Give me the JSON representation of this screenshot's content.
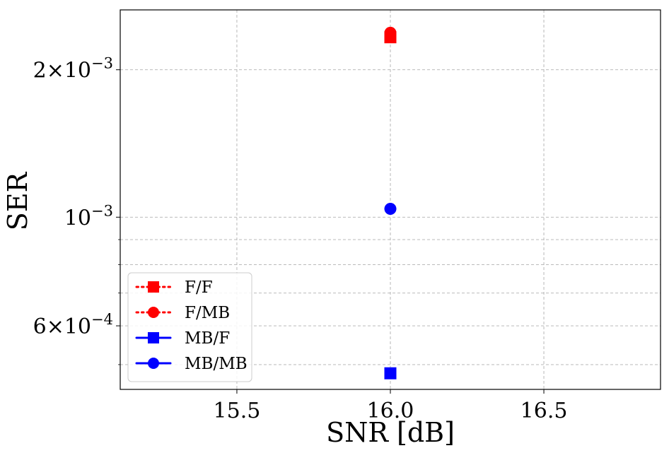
{
  "chart_data": {
    "type": "scatter",
    "title": "",
    "xlabel": "SNR [dB]",
    "ylabel": "SER",
    "x_scale": "linear",
    "y_scale": "log",
    "xlim": [
      15.12,
      16.88
    ],
    "ylim": [
      0.000445,
      0.00265
    ],
    "x_ticks": [
      15.5,
      16.0,
      16.5
    ],
    "x_tick_labels": [
      "15.5",
      "16.0",
      "16.5"
    ],
    "y_major_ticks": [
      {
        "value": 0.002,
        "mantissa": "2",
        "exponent": "−3"
      },
      {
        "value": 0.001,
        "mantissa": "",
        "exponent": "−3"
      },
      {
        "value": 0.0006,
        "mantissa": "6",
        "exponent": "−4"
      }
    ],
    "y_minor_gridlines": [
      0.0005,
      0.0007,
      0.0008,
      0.0009
    ],
    "grid": true,
    "legend_position": "lower-left",
    "series": [
      {
        "name": "F/F",
        "color": "#ff0000",
        "marker": "square",
        "linestyle": "dotted",
        "x": [
          16.0
        ],
        "y": [
          0.00233
        ]
      },
      {
        "name": "F/MB",
        "color": "#ff0000",
        "marker": "circle",
        "linestyle": "dotted",
        "x": [
          16.0
        ],
        "y": [
          0.00238
        ]
      },
      {
        "name": "MB/F",
        "color": "#0000ff",
        "marker": "square",
        "linestyle": "solid",
        "x": [
          16.0
        ],
        "y": [
          0.00048
        ]
      },
      {
        "name": "MB/MB",
        "color": "#0000ff",
        "marker": "circle",
        "linestyle": "solid",
        "x": [
          16.0
        ],
        "y": [
          0.00104
        ]
      }
    ]
  }
}
